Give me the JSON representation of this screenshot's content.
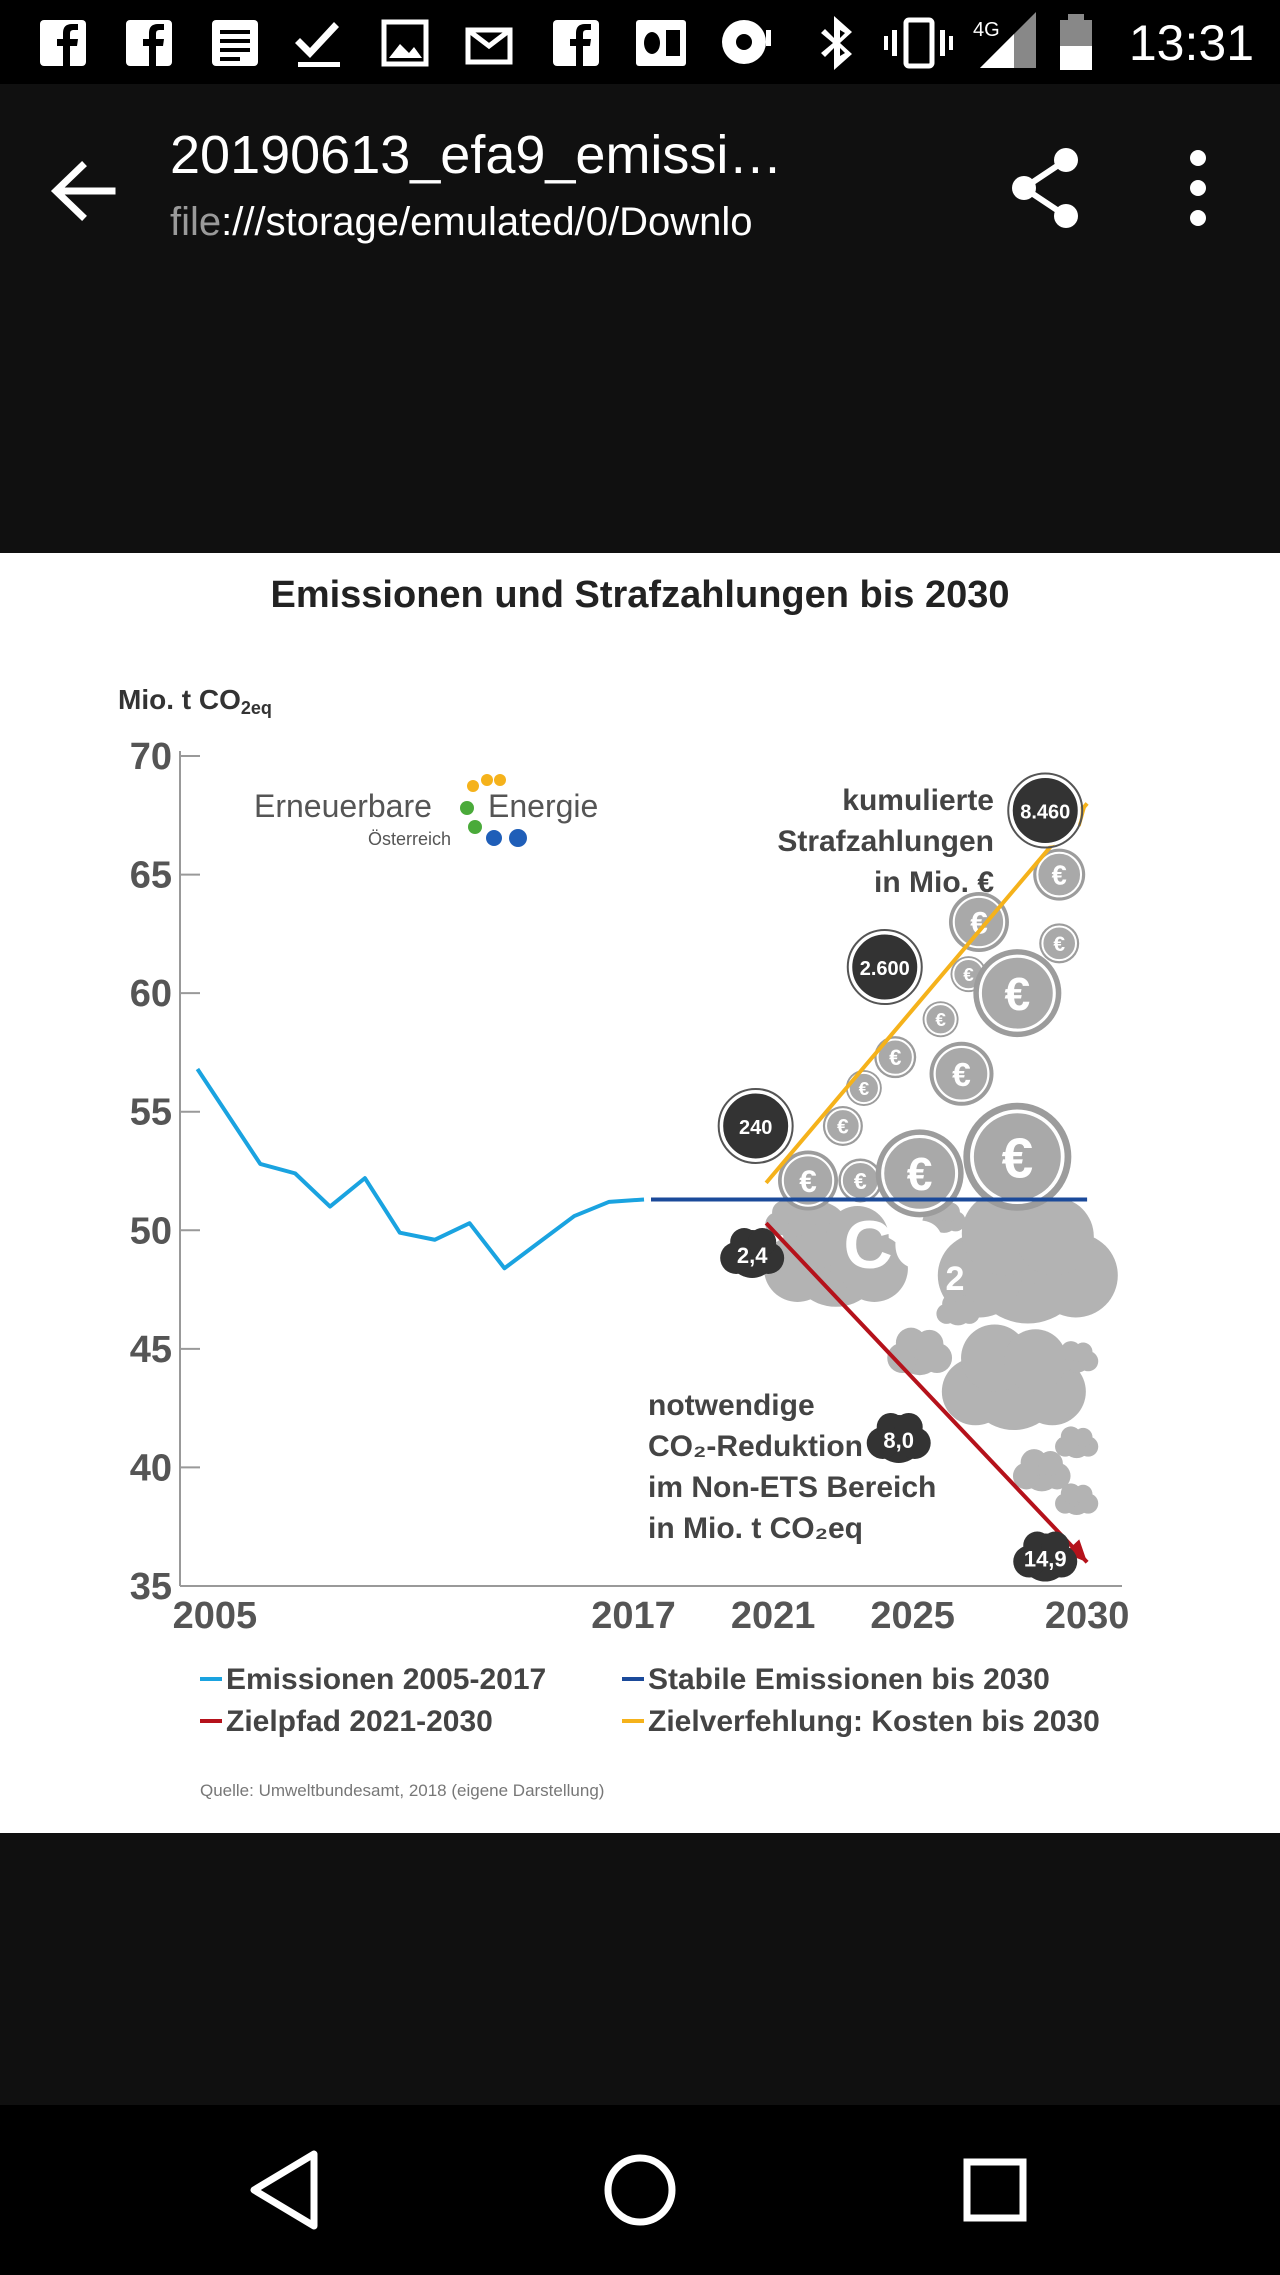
{
  "status_bar": {
    "time": "13:31",
    "network": "4G",
    "icons": [
      "facebook-icon",
      "facebook-icon",
      "notes-icon",
      "checkmark-icon",
      "image-icon",
      "mail-icon",
      "facebook-icon",
      "outlook-icon",
      "podcast-icon",
      "bluetooth-icon",
      "vibrate-icon",
      "signal-icon",
      "battery-icon"
    ]
  },
  "app_bar": {
    "title": "20190613_efa9_emissi…",
    "subtitle_scheme": "file",
    "subtitle_rest": ":///storage/emulated/0/Downlo",
    "back_icon": "arrow-left-icon",
    "share_icon": "share-icon",
    "more_icon": "more-vert-icon"
  },
  "nav_bar": {
    "back_icon": "nav-back-icon",
    "home_icon": "nav-home-icon",
    "recents_icon": "nav-recents-icon"
  },
  "chart_data": {
    "type": "line",
    "title": "Emissionen und Strafzahlungen bis 2030",
    "ylabel_main": "Mio. t CO",
    "ylabel_sub": "2eq",
    "ylim": [
      35,
      70
    ],
    "yticks": [
      70,
      65,
      60,
      55,
      50,
      45,
      40,
      35
    ],
    "xlim": [
      2004,
      2031
    ],
    "xticks": [
      {
        "label": "2005",
        "x": 2005
      },
      {
        "label": "2017",
        "x": 2017
      },
      {
        "label": "2021",
        "x": 2021
      },
      {
        "label": "2025",
        "x": 2025
      },
      {
        "label": "2030",
        "x": 2030
      }
    ],
    "logo": {
      "text1": "Erneuerbare",
      "text2": "Energie",
      "text3": "Österreich"
    },
    "series": [
      {
        "name": "Emissionen 2005-2017",
        "color": "#1aa3e0",
        "x": [
          2004.5,
          2006.3,
          2007.3,
          2008.3,
          2009.3,
          2010.3,
          2011.3,
          2012.3,
          2013.3,
          2014.3,
          2015.3,
          2016.3,
          2017.3
        ],
        "y": [
          56.8,
          52.8,
          52.4,
          51.0,
          52.2,
          49.9,
          49.6,
          50.3,
          48.4,
          49.5,
          50.6,
          51.2,
          51.3
        ]
      },
      {
        "name": "Stabile Emissionen bis 2030",
        "color": "#1b4a9a",
        "x": [
          2017.5,
          2030
        ],
        "y": [
          51.3,
          51.3
        ]
      },
      {
        "name": "Zielpfad 2021-2030",
        "color": "#b5121b",
        "x": [
          2020.8,
          2030
        ],
        "y": [
          50.3,
          36.0
        ]
      },
      {
        "name": "Zielverfehlung: Kosten bis 2030",
        "color": "#f5b21b",
        "x": [
          2020.8,
          2030
        ],
        "y": [
          52.0,
          68.0
        ]
      }
    ],
    "penalty_label": [
      "kumulierte",
      "Strafzahlungen",
      "in Mio. €"
    ],
    "penalty_values": [
      {
        "label": "240",
        "x": 2020.5,
        "y": 54.4
      },
      {
        "label": "2.600",
        "x": 2024.2,
        "y": 61.1
      },
      {
        "label": "8.460",
        "x": 2028.8,
        "y": 67.7
      }
    ],
    "reduction_label": [
      "notwendige",
      "CO₂-Reduktion",
      "im Non-ETS Bereich",
      "in Mio. t CO₂eq"
    ],
    "reduction_values": [
      {
        "label": "2,4",
        "x": 2020.4,
        "y": 49.0
      },
      {
        "label": "8,0",
        "x": 2024.6,
        "y": 41.2
      },
      {
        "label": "14,9",
        "x": 2028.8,
        "y": 36.2
      }
    ],
    "co2_label": "CO",
    "co2_sub": "2",
    "euro_symbol": "€",
    "source": "Quelle: Umweltbundesamt, 2018 (eigene Darstellung)"
  }
}
